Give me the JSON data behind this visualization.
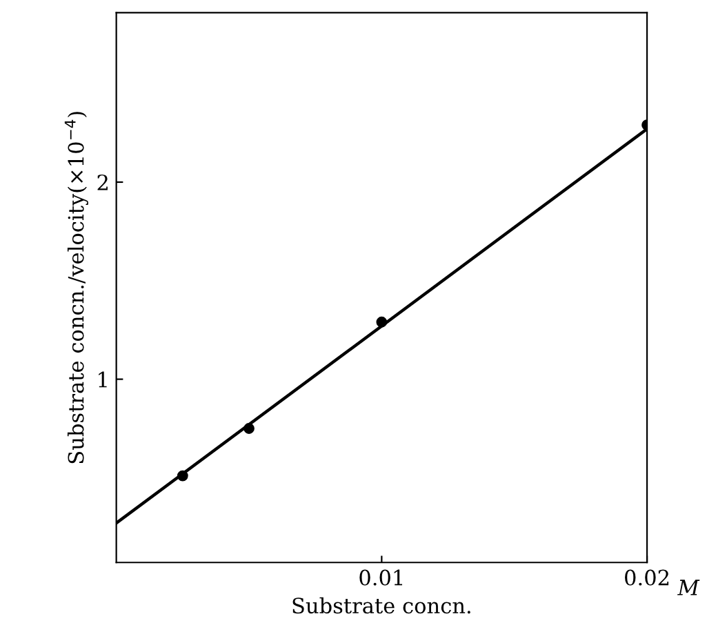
{
  "chart_data": {
    "type": "scatter",
    "xlabel": "Substrate concn.",
    "ylabel": "Substrate concn./velocity(×10$^{−4}$)",
    "annotations": [
      "M"
    ],
    "x": [
      0.0025,
      0.005,
      0.01,
      0.02
    ],
    "series": [
      {
        "color": "#000000",
        "values": [
          0.51,
          0.75,
          1.29,
          2.29
        ],
        "marker": "circle"
      },
      {
        "type": "line",
        "color": "#000000",
        "x": [
          0,
          0.02
        ],
        "values": [
          0.27,
          2.27
        ],
        "marker": "none",
        "line_style": "solid"
      }
    ],
    "xlim": [
      0,
      0.02
    ],
    "ylim": [
      0.07,
      2.86
    ],
    "xticks": [
      0.01,
      0.02
    ],
    "yticks": [
      1,
      2
    ],
    "grid": false,
    "legend": false
  }
}
